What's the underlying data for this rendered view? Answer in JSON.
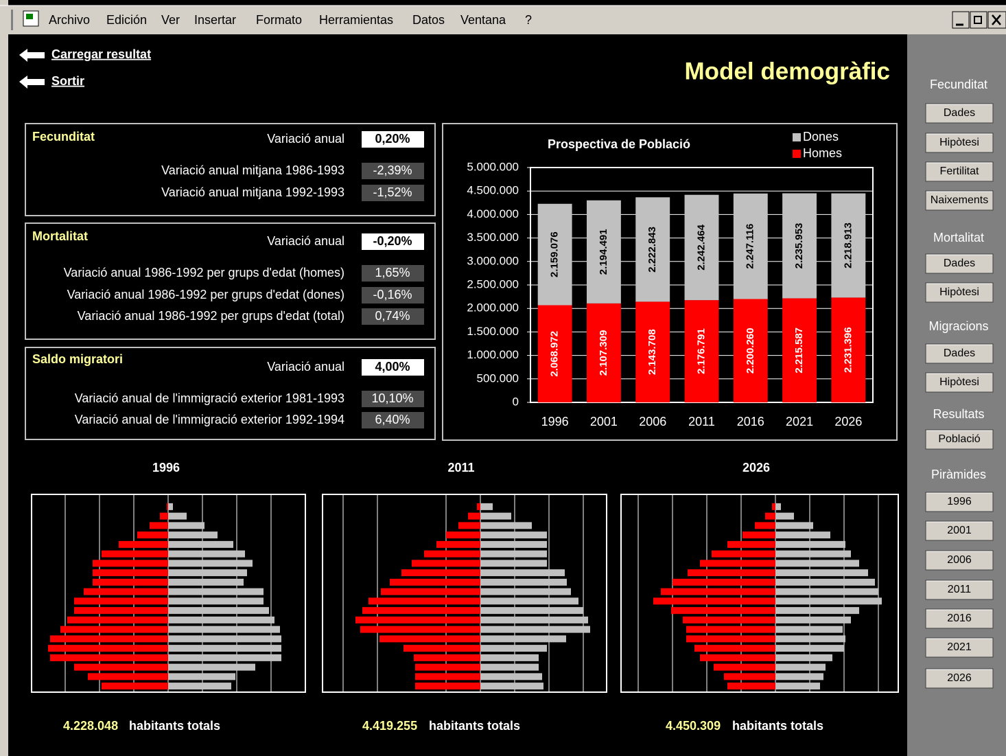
{
  "menu": [
    "Archivo",
    "Edición",
    "Ver",
    "Insertar",
    "Formato",
    "Herramientas",
    "Datos",
    "Ventana",
    "?"
  ],
  "links": [
    "Carregar resultat",
    "Sortir"
  ],
  "title": "Model demogràfic",
  "panels": [
    {
      "title": "Fecunditat",
      "main_label": "Variació anual",
      "main_value": "0,20%",
      "rows": [
        [
          "Variació anual mitjana 1986-1993",
          "-2,39%"
        ],
        [
          "Variació anual mitjana 1992-1993",
          "-1,52%"
        ]
      ]
    },
    {
      "title": "Mortalitat",
      "main_label": "Variació anual",
      "main_value": "-0,20%",
      "rows": [
        [
          "Variació anual 1986-1992 per grups d'edat (homes)",
          "1,65%"
        ],
        [
          "Variació anual 1986-1992 per grups d'edat (dones)",
          "-0,16%"
        ],
        [
          "Variació anual 1986-1992 per grups d'edat (total)",
          "0,74%"
        ]
      ]
    },
    {
      "title": "Saldo migratori",
      "main_label": "Variació anual",
      "main_value": "4,00%",
      "rows": [
        [
          "Variació anual de l'immigració exterior 1981-1993",
          "10,10%"
        ],
        [
          "Variació anual de l'immigració exterior 1992-1994",
          "6,40%"
        ]
      ]
    }
  ],
  "chart_data": [
    {
      "type": "bar",
      "stacked": true,
      "title": "Prospectiva de Població",
      "categories": [
        "1996",
        "2001",
        "2006",
        "2011",
        "2016",
        "2021",
        "2026"
      ],
      "series": [
        {
          "name": "Homes",
          "color": "#ff0000",
          "label_color": "#ffffff",
          "values": [
            2068972,
            2107309,
            2143708,
            2176791,
            2200260,
            2215587,
            2231396
          ],
          "value_labels": [
            "2.068.972",
            "2.107.309",
            "2.143.708",
            "2.176.791",
            "2.200.260",
            "2.215.587",
            "2.231.396"
          ]
        },
        {
          "name": "Dones",
          "color": "#c0c0c0",
          "label_color": "#000000",
          "values": [
            2159076,
            2194491,
            2222843,
            2242464,
            2247116,
            2235953,
            2218913
          ],
          "value_labels": [
            "2.159.076",
            "2.194.491",
            "2.222.843",
            "2.242.464",
            "2.247.116",
            "2.235.953",
            "2.218.913"
          ]
        }
      ],
      "ylim": [
        0,
        5000000
      ],
      "yticks": [
        0,
        {
          "value": 500000,
          "label": "500.000"
        },
        {
          "value": 1000000,
          "label": "1.000.000"
        },
        {
          "value": 1500000,
          "label": "1.500.000"
        },
        {
          "value": 2000000,
          "label": "2.000.000"
        },
        {
          "value": 2500000,
          "label": "2.500.000"
        },
        {
          "value": 3000000,
          "label": "3.000.000"
        },
        {
          "value": 3500000,
          "label": "3.500.000"
        },
        {
          "value": 4000000,
          "label": "4.000.000"
        },
        {
          "value": 4500000,
          "label": "4.500.000"
        },
        {
          "value": 5000000,
          "label": "5.000.000"
        }
      ],
      "grid": true,
      "legend": "top-right"
    },
    {
      "type": "pyramid",
      "title": "1996",
      "total_label": "4.228.048",
      "total_text": "habitants totals",
      "series": [
        {
          "color": "#ff0000",
          "values": [
            0.04,
            0.24,
            0.54,
            0.9,
            1.44,
            1.94,
            2.2,
            2.2,
            2.2,
            2.46,
            2.74,
            2.74,
            2.94,
            3.14,
            3.44,
            3.5,
            3.44,
            2.74,
            2.34,
            1.94
          ]
        },
        {
          "color": "#c0c0c0",
          "values": [
            0.14,
            0.54,
            1.06,
            1.44,
            1.9,
            2.24,
            2.46,
            2.3,
            2.2,
            2.78,
            2.78,
            2.94,
            3.1,
            3.26,
            3.3,
            3.3,
            3.3,
            2.54,
            1.96,
            1.84
          ]
        }
      ],
      "xlim": [
        -3.98,
        4
      ],
      "xticks": [
        -3,
        -2,
        -1,
        0,
        1,
        2,
        3
      ],
      "grid": true,
      "tick_labels": false
    },
    {
      "type": "pyramid",
      "title": "2011",
      "total_label": "4.419.255",
      "total_text": "habitants totals",
      "series": [
        {
          "color": "#ff0000",
          "values": [
            0.1,
            0.36,
            0.64,
            1.0,
            1.28,
            1.64,
            2.0,
            2.3,
            2.64,
            2.9,
            3.26,
            3.44,
            3.64,
            3.5,
            2.94,
            2.24,
            1.94,
            1.9,
            1.9,
            1.9
          ]
        },
        {
          "color": "#c0c0c0",
          "values": [
            0.36,
            0.9,
            1.5,
            1.94,
            1.94,
            1.94,
            1.94,
            2.46,
            2.52,
            2.64,
            2.86,
            3.0,
            3.14,
            3.2,
            2.5,
            1.94,
            1.7,
            1.7,
            1.8,
            1.84
          ]
        }
      ],
      "xlim": [
        -4.6,
        3.68
      ],
      "xticks": [
        -4,
        -3,
        -1,
        0,
        1,
        2,
        3
      ],
      "grid": true,
      "tick_labels": false
    },
    {
      "type": "pyramid",
      "title": "2026",
      "total_label": "4.450.309",
      "total_text": "habitants totals",
      "series": [
        {
          "color": "#ff0000",
          "values": [
            0.1,
            0.3,
            0.6,
            0.96,
            1.4,
            1.86,
            2.2,
            2.56,
            3.0,
            3.34,
            3.56,
            3.04,
            2.7,
            2.6,
            2.6,
            2.36,
            2.2,
            1.8,
            1.5,
            1.4
          ]
        },
        {
          "color": "#c0c0c0",
          "values": [
            0.16,
            0.54,
            1.1,
            1.6,
            2.04,
            2.2,
            2.44,
            2.7,
            2.9,
            3.0,
            3.1,
            2.44,
            2.2,
            1.96,
            2.04,
            2.0,
            1.66,
            1.46,
            1.4,
            1.3
          ]
        }
      ],
      "xlim": [
        -4.5,
        3.58
      ],
      "xticks": [
        -4,
        -3,
        -2,
        -1,
        0,
        1,
        2,
        3
      ],
      "grid": true,
      "tick_labels": false
    }
  ],
  "sidebar": [
    {
      "label": "Fecunditat",
      "buttons": [
        "Dades",
        "Hipòtesi",
        "Fertilitat",
        "Naixements"
      ]
    },
    {
      "label": "Mortalitat",
      "buttons": [
        "Dades",
        "Hipòtesi"
      ]
    },
    {
      "label": "Migracions",
      "buttons": [
        "Dades",
        "Hipòtesi"
      ]
    },
    {
      "label": "Resultats",
      "buttons": [
        "Població"
      ]
    },
    {
      "label": "Piràmides",
      "buttons": [
        "1996",
        "2001",
        "2006",
        "2011",
        "2016",
        "2021",
        "2026"
      ]
    }
  ]
}
